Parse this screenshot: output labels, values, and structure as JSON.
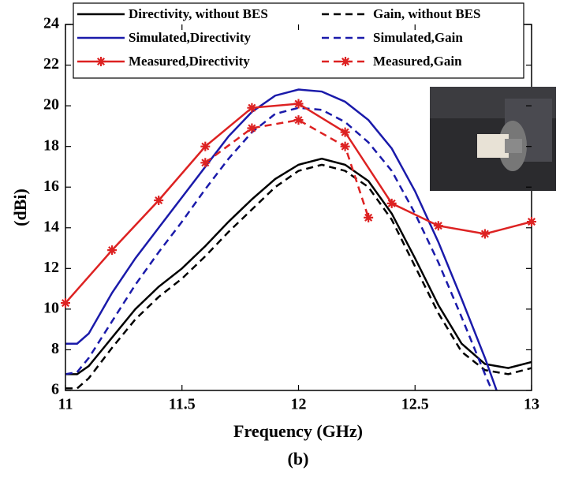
{
  "chart_data": {
    "type": "line",
    "xlabel": "Frequency (GHz)",
    "ylabel": "(dBi)",
    "caption": "(b)",
    "xlim": [
      11,
      13
    ],
    "xticks": [
      11,
      11.5,
      12,
      12.5,
      13
    ],
    "ylim": [
      6,
      24
    ],
    "yticks": [
      6,
      8,
      10,
      12,
      14,
      16,
      18,
      20,
      22,
      24
    ],
    "grid": false,
    "legend": "top",
    "series": [
      {
        "name": "Directivity, without BES",
        "color": "#000000",
        "dash": false,
        "marker": null,
        "x": [
          11,
          11.05,
          11.1,
          11.2,
          11.3,
          11.4,
          11.5,
          11.6,
          11.7,
          11.8,
          11.9,
          12.0,
          12.1,
          12.2,
          12.3,
          12.4,
          12.5,
          12.6,
          12.7,
          12.8,
          12.9,
          13.0
        ],
        "values": [
          6.8,
          6.8,
          7.2,
          8.6,
          10.0,
          11.1,
          12.0,
          13.1,
          14.3,
          15.4,
          16.4,
          17.1,
          17.4,
          17.1,
          16.3,
          14.7,
          12.5,
          10.2,
          8.3,
          7.3,
          7.1,
          7.4
        ]
      },
      {
        "name": "Gain, without BES",
        "color": "#000000",
        "dash": true,
        "marker": null,
        "x": [
          11,
          11.05,
          11.1,
          11.2,
          11.3,
          11.4,
          11.5,
          11.6,
          11.7,
          11.8,
          11.9,
          12.0,
          12.1,
          12.2,
          12.3,
          12.4,
          12.5,
          12.6,
          12.7,
          12.8,
          12.9,
          13.0
        ],
        "values": [
          6.1,
          6.1,
          6.6,
          8.1,
          9.5,
          10.6,
          11.5,
          12.6,
          13.8,
          14.9,
          16.0,
          16.8,
          17.1,
          16.8,
          16.0,
          14.4,
          12.1,
          9.8,
          7.9,
          7.0,
          6.8,
          7.1
        ]
      },
      {
        "name": "Simulated,Directivity",
        "color": "#1a1aaa",
        "dash": false,
        "marker": null,
        "x": [
          11,
          11.05,
          11.1,
          11.2,
          11.3,
          11.4,
          11.5,
          11.6,
          11.7,
          11.8,
          11.9,
          12.0,
          12.1,
          12.2,
          12.3,
          12.4,
          12.5,
          12.6,
          12.7,
          12.8,
          12.85
        ],
        "values": [
          8.3,
          8.3,
          8.8,
          10.8,
          12.5,
          14.0,
          15.5,
          17.0,
          18.5,
          19.7,
          20.5,
          20.8,
          20.7,
          20.2,
          19.3,
          17.9,
          15.8,
          13.3,
          10.5,
          7.6,
          6.0
        ]
      },
      {
        "name": "Simulated,Gain",
        "color": "#1a1aaa",
        "dash": true,
        "marker": null,
        "x": [
          11,
          11.05,
          11.1,
          11.2,
          11.3,
          11.4,
          11.5,
          11.6,
          11.7,
          11.8,
          11.9,
          12.0,
          12.1,
          12.2,
          12.3,
          12.4,
          12.5,
          12.6,
          12.7,
          12.8,
          12.83
        ],
        "values": [
          6.8,
          6.9,
          7.6,
          9.4,
          11.2,
          12.8,
          14.3,
          15.9,
          17.4,
          18.7,
          19.6,
          19.9,
          19.8,
          19.2,
          18.2,
          16.8,
          14.7,
          12.3,
          9.6,
          6.8,
          6.0
        ]
      },
      {
        "name": "Measured,Directivity",
        "color": "#dd2222",
        "dash": false,
        "marker": "star",
        "x": [
          11.0,
          11.2,
          11.4,
          11.6,
          11.8,
          12.0,
          12.2,
          12.4,
          12.6,
          12.8,
          13.0
        ],
        "values": [
          10.3,
          12.9,
          15.35,
          18.0,
          19.9,
          20.1,
          18.7,
          15.2,
          14.1,
          13.7,
          14.3
        ]
      },
      {
        "name": "Measured,Gain",
        "color": "#dd2222",
        "dash": true,
        "marker": "star",
        "x": [
          11.6,
          11.8,
          12.0,
          12.2,
          12.3
        ],
        "values": [
          17.2,
          18.9,
          19.3,
          18.0,
          14.5
        ]
      }
    ]
  }
}
